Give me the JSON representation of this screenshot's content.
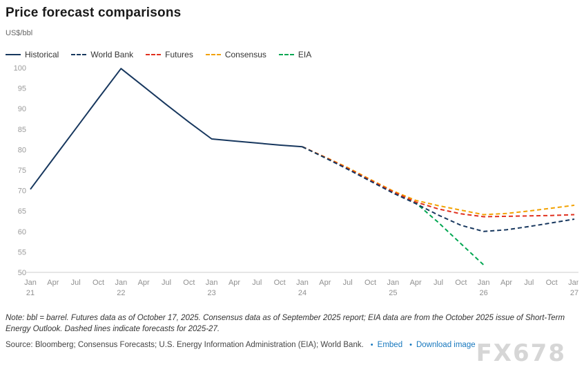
{
  "header": {
    "title": "Price forecast comparisons",
    "unit_label": "US$/bbl"
  },
  "legend": [
    {
      "label": "Historical",
      "color": "#17375e",
      "dashed": false
    },
    {
      "label": "World Bank",
      "color": "#17375e",
      "dashed": true
    },
    {
      "label": "Futures",
      "color": "#e0301e",
      "dashed": true
    },
    {
      "label": "Consensus",
      "color": "#f2a100",
      "dashed": true
    },
    {
      "label": "EIA",
      "color": "#00a651",
      "dashed": true
    }
  ],
  "chart_data": {
    "type": "line",
    "title": "Price forecast comparisons",
    "ylabel": "US$/bbl",
    "ylim": [
      50,
      100
    ],
    "y_ticks": [
      50,
      55,
      60,
      65,
      70,
      75,
      80,
      85,
      90,
      95,
      100
    ],
    "grid": false,
    "legend_position": "top",
    "x_tick_months": [
      "Jan",
      "Apr",
      "Jul",
      "Oct",
      "Jan",
      "Apr",
      "Jul",
      "Oct",
      "Jan",
      "Apr",
      "Jul",
      "Oct",
      "Jan",
      "Apr",
      "Jul",
      "Oct",
      "Jan",
      "Apr",
      "Jul",
      "Oct",
      "Jan",
      "Apr",
      "Jul",
      "Oct",
      "Jan"
    ],
    "x_tick_years": [
      "21",
      "",
      "",
      "",
      "22",
      "",
      "",
      "",
      "23",
      "",
      "",
      "",
      "24",
      "",
      "",
      "",
      "25",
      "",
      "",
      "",
      "26",
      "",
      "",
      "",
      "27"
    ],
    "series": [
      {
        "name": "EIA",
        "color": "#00a651",
        "dashed": true,
        "values": [
          null,
          null,
          null,
          null,
          null,
          null,
          null,
          null,
          null,
          null,
          null,
          null,
          80.7,
          78.0,
          75.3,
          72.4,
          69.5,
          67.0,
          62.2,
          57.0,
          51.8,
          null,
          null,
          null,
          null
        ]
      },
      {
        "name": "Consensus",
        "color": "#f2a100",
        "dashed": true,
        "values": [
          null,
          null,
          null,
          null,
          null,
          null,
          null,
          null,
          null,
          null,
          null,
          null,
          80.7,
          78.2,
          75.6,
          72.7,
          69.9,
          67.6,
          66.3,
          65.2,
          64.1,
          64.4,
          65.0,
          65.7,
          66.4
        ]
      },
      {
        "name": "Futures",
        "color": "#e0301e",
        "dashed": true,
        "values": [
          null,
          null,
          null,
          null,
          null,
          null,
          null,
          null,
          null,
          null,
          null,
          null,
          80.7,
          78.1,
          75.4,
          72.5,
          69.7,
          67.2,
          65.5,
          64.3,
          63.6,
          63.7,
          63.8,
          63.9,
          64.1
        ]
      },
      {
        "name": "World Bank",
        "color": "#17375e",
        "dashed": true,
        "values": [
          null,
          null,
          null,
          null,
          null,
          null,
          null,
          null,
          null,
          null,
          null,
          null,
          80.7,
          78.0,
          75.2,
          72.3,
          69.4,
          66.8,
          64.0,
          61.5,
          60.0,
          60.4,
          61.2,
          62.1,
          63.0
        ]
      },
      {
        "name": "Historical",
        "color": "#17375e",
        "dashed": false,
        "values": [
          70.3,
          77.7,
          85.1,
          92.5,
          99.8,
          95.4,
          91.0,
          86.7,
          82.6,
          82.1,
          81.6,
          81.1,
          80.7,
          null,
          null,
          null,
          null,
          null,
          null,
          null,
          null,
          null,
          null,
          null,
          null
        ]
      }
    ]
  },
  "footer": {
    "note": "Note: bbl = barrel. Futures data as of October 17, 2025. Consensus data as of September 2025 report; EIA data are from the October 2025 issue of Short-Term Energy Outlook. Dashed lines indicate forecasts for 2025-27.",
    "source": "Source: Bloomberg; Consensus Forecasts; U.S. Energy Information Administration (EIA); World Bank.",
    "links": [
      {
        "label": "Embed"
      },
      {
        "label": "Download image"
      }
    ],
    "watermark": "FX678"
  }
}
